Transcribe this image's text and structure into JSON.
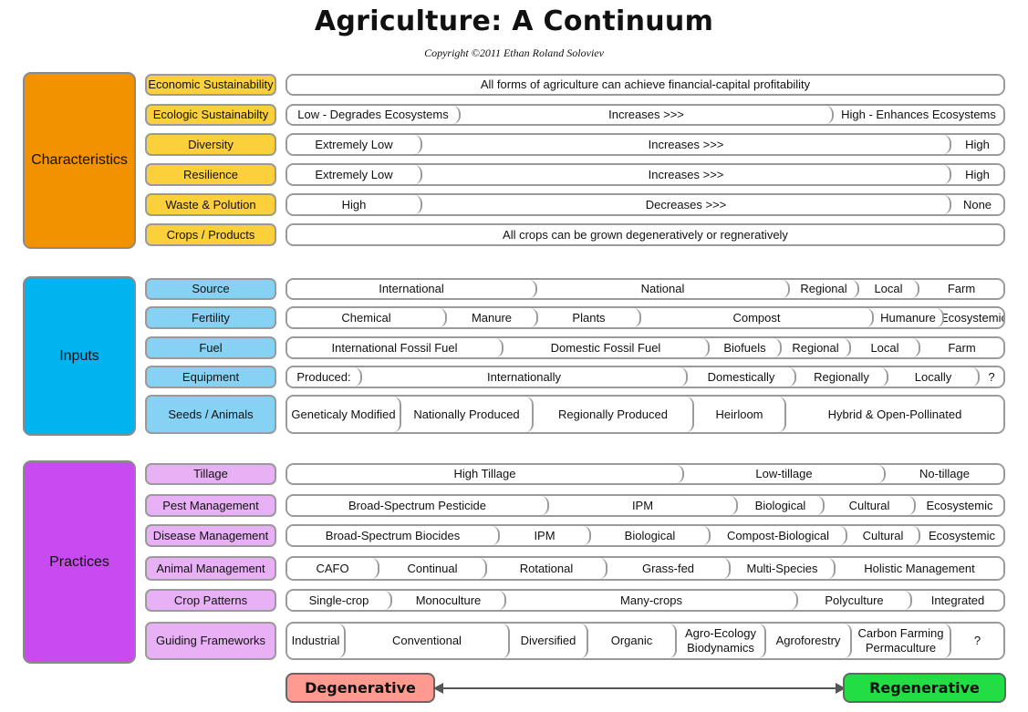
{
  "title": "Agriculture: A Continuum",
  "copyright": "Copyright ©2011 Ethan Roland Soloviev",
  "colors": {
    "characteristics": "#f39200",
    "characteristics_label": "#fcd03b",
    "inputs": "#00b4f0",
    "inputs_label": "#86d2f5",
    "practices": "#c84bf2",
    "practices_label": "#e8b0f5",
    "degenerative": "#ff9a90",
    "regenerative": "#22dd44"
  },
  "sections": [
    {
      "name": "Characteristics",
      "rows": [
        {
          "label": "Economic Sustainability",
          "segments": [
            "All forms of agriculture can achieve financial-capital profitability"
          ]
        },
        {
          "label": "Ecologic Sustainabilty",
          "segments": [
            "Low - Degrades Ecosystems",
            "Increases >>>",
            "High - Enhances Ecosystems"
          ]
        },
        {
          "label": "Diversity",
          "segments": [
            "Extremely Low",
            "Increases >>>",
            "High"
          ]
        },
        {
          "label": "Resilience",
          "segments": [
            "Extremely Low",
            "Increases >>>",
            "High"
          ]
        },
        {
          "label": "Waste & Polution",
          "segments": [
            "High",
            "Decreases >>>",
            "None"
          ]
        },
        {
          "label": "Crops / Products",
          "segments": [
            "All crops can be grown degeneratively or regneratively"
          ]
        }
      ]
    },
    {
      "name": "Inputs",
      "rows": [
        {
          "label": "Source",
          "segments": [
            "International",
            "National",
            "Regional",
            "Local",
            "Farm"
          ]
        },
        {
          "label": "Fertility",
          "segments": [
            "Chemical",
            "Manure",
            "Plants",
            "Compost",
            "Humanure",
            "Ecosystemic"
          ]
        },
        {
          "label": "Fuel",
          "segments": [
            "International Fossil Fuel",
            "Domestic Fossil Fuel",
            "Biofuels",
            "Regional",
            "Local",
            "Farm"
          ]
        },
        {
          "label": "Equipment",
          "segments": [
            "Produced:",
            "Internationally",
            "Domestically",
            "Regionally",
            "Locally",
            "?"
          ]
        },
        {
          "label": "Seeds / Animals",
          "segments": [
            "Geneticaly Modified",
            "Nationally Produced",
            "Regionally Produced",
            "Heirloom",
            "Hybrid & Open-Pollinated"
          ]
        }
      ]
    },
    {
      "name": "Practices",
      "rows": [
        {
          "label": "Tillage",
          "segments": [
            "High Tillage",
            "Low-tillage",
            "No-tillage"
          ]
        },
        {
          "label": "Pest Management",
          "segments": [
            "Broad-Spectrum Pesticide",
            "IPM",
            "Biological",
            "Cultural",
            "Ecosystemic"
          ]
        },
        {
          "label": "Disease Management",
          "segments": [
            "Broad-Spectrum Biocides",
            "IPM",
            "Biological",
            "Compost-Biological",
            "Cultural",
            "Ecosystemic"
          ]
        },
        {
          "label": "Animal Management",
          "segments": [
            "CAFO",
            "Continual",
            "Rotational",
            "Grass-fed",
            "Multi-Species",
            "Holistic Management"
          ]
        },
        {
          "label": "Crop Patterns",
          "segments": [
            "Single-crop",
            "Monoculture",
            "Many-crops",
            "Polyculture",
            "Integrated"
          ]
        },
        {
          "label": "Guiding Frameworks",
          "segments": [
            "Industrial",
            "Conventional",
            "Diversified",
            "Organic",
            "Agro-Ecology Biodynamics",
            "Agroforestry",
            "Carbon Farming Permaculture",
            "?"
          ]
        }
      ]
    }
  ],
  "scale": {
    "left": "Degenerative",
    "right": "Regenerative"
  }
}
